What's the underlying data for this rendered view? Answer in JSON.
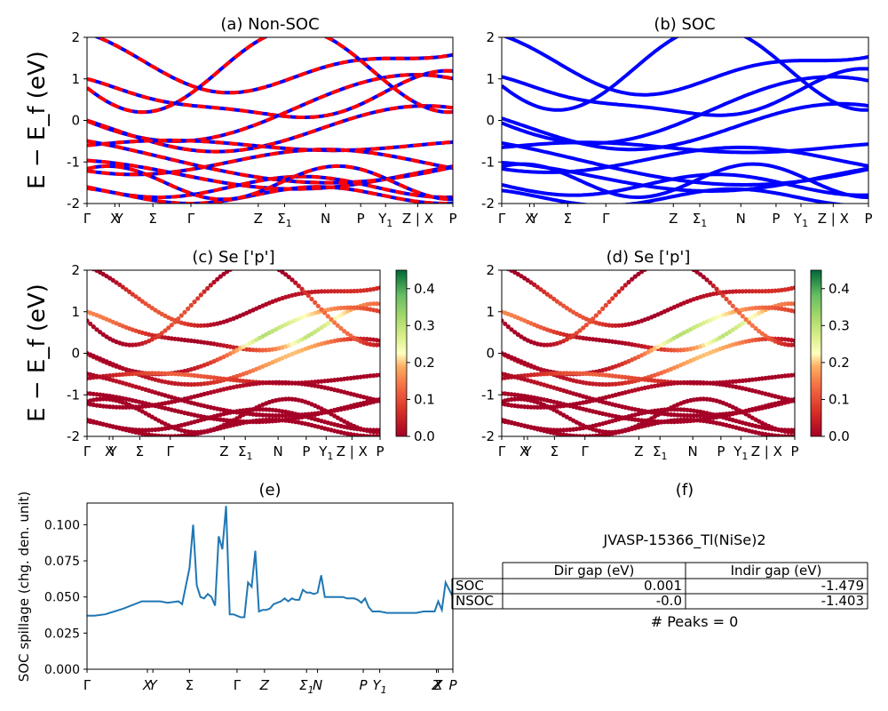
{
  "figure_id": "JVASP-15366_Tl(NiSe)2",
  "chart_data": [
    {
      "id": "a",
      "type": "line",
      "title": "(a) Non-SOC",
      "ylabel": "E − E_f (eV)",
      "ylim": [
        -2,
        2
      ],
      "yticks": [
        -2,
        -1,
        0,
        1,
        2
      ],
      "kpath": [
        "Γ",
        "X",
        "Y",
        "Σ",
        "Γ",
        "Z",
        "Σ1",
        "N",
        "P",
        "Y1",
        "Z | X",
        "P"
      ],
      "colors": {
        "up": "#0000ff",
        "down": "#ff0000"
      },
      "legend": "none"
    },
    {
      "id": "b",
      "type": "line",
      "title": "(b) SOC",
      "ylim": [
        -2,
        2
      ],
      "yticks": [
        -2,
        -1,
        0,
        1,
        2
      ],
      "kpath": [
        "Γ",
        "X",
        "Y",
        "Σ",
        "Γ",
        "Z",
        "Σ1",
        "N",
        "P",
        "Y1",
        "Z | X",
        "P"
      ],
      "colors": {
        "bands": "#0000ff"
      }
    },
    {
      "id": "c",
      "type": "scatter",
      "title": "(c)  Se ['p']",
      "ylabel": "E − E_f (eV)",
      "ylim": [
        -2,
        2
      ],
      "yticks": [
        -2,
        -1,
        0,
        1,
        2
      ],
      "kpath": [
        "Γ",
        "X",
        "Y",
        "Σ",
        "Γ",
        "Z",
        "Σ1",
        "N",
        "P",
        "Y1",
        "Z | X",
        "P"
      ],
      "colorbar": {
        "min": 0.0,
        "max": 0.45,
        "ticks": [
          0.0,
          0.1,
          0.2,
          0.3,
          0.4
        ],
        "colormap": "RdYlGn"
      }
    },
    {
      "id": "d",
      "type": "scatter",
      "title": "(d) Se ['p']",
      "ylim": [
        -2,
        2
      ],
      "yticks": [
        -2,
        -1,
        0,
        1,
        2
      ],
      "kpath": [
        "Γ",
        "X",
        "Y",
        "Σ",
        "Γ",
        "Z",
        "Σ1",
        "N",
        "P",
        "Y1",
        "Z | X",
        "P"
      ],
      "colorbar": {
        "min": 0.0,
        "max": 0.45,
        "ticks": [
          0.0,
          0.1,
          0.2,
          0.3,
          0.4
        ],
        "colormap": "RdYlGn"
      }
    },
    {
      "id": "e",
      "type": "line",
      "title": "(e)",
      "ylabel": "SOC spillage (chg. den. unit)",
      "ylim": [
        0.0,
        0.115
      ],
      "yticks": [
        0.0,
        0.025,
        0.05,
        0.075,
        0.1
      ],
      "xticks": [
        "Γ",
        "X",
        "Y",
        "Σ",
        "Γ",
        "Z",
        "Σ1",
        "N",
        "P",
        "Y1",
        "Z",
        "X",
        "P"
      ],
      "series": [
        {
          "color": "#1f77b4",
          "x": [
            0,
            0.02,
            0.05,
            0.1,
            0.15,
            0.2,
            0.22,
            0.25,
            0.26,
            0.28,
            0.29,
            0.3,
            0.31,
            0.32,
            0.33,
            0.34,
            0.35,
            0.36,
            0.37,
            0.38,
            0.39,
            0.4,
            0.41,
            0.42,
            0.43,
            0.44,
            0.45,
            0.46,
            0.47,
            0.48,
            0.49,
            0.5,
            0.51,
            0.52,
            0.53,
            0.54,
            0.55,
            0.56,
            0.57,
            0.58,
            0.59,
            0.6,
            0.61,
            0.62,
            0.63,
            0.64,
            0.65,
            0.66,
            0.67,
            0.68,
            0.69,
            0.7,
            0.71,
            0.72,
            0.73,
            0.74,
            0.75,
            0.76,
            0.77,
            0.78,
            0.8,
            0.82,
            0.84,
            0.86,
            0.88,
            0.9,
            0.92,
            0.94,
            0.95,
            0.96,
            0.97,
            0.98,
            0.99,
            1.0
          ],
          "y": [
            0.037,
            0.037,
            0.038,
            0.042,
            0.047,
            0.047,
            0.046,
            0.047,
            0.045,
            0.07,
            0.1,
            0.058,
            0.05,
            0.049,
            0.052,
            0.05,
            0.044,
            0.092,
            0.083,
            0.113,
            0.038,
            0.038,
            0.037,
            0.036,
            0.036,
            0.06,
            0.057,
            0.082,
            0.04,
            0.041,
            0.041,
            0.042,
            0.045,
            0.046,
            0.047,
            0.049,
            0.047,
            0.049,
            0.048,
            0.048,
            0.055,
            0.053,
            0.053,
            0.052,
            0.053,
            0.065,
            0.05,
            0.05,
            0.05,
            0.05,
            0.05,
            0.05,
            0.049,
            0.049,
            0.049,
            0.048,
            0.046,
            0.049,
            0.043,
            0.04,
            0.04,
            0.039,
            0.039,
            0.039,
            0.039,
            0.039,
            0.04,
            0.04,
            0.04,
            0.047,
            0.041,
            0.06,
            0.055,
            0.05
          ]
        }
      ]
    }
  ],
  "panel_f": {
    "title": "(f)",
    "material": "JVASP-15366_Tl(NiSe)2",
    "columns": [
      "",
      "Dir gap (eV)",
      "Indir gap (eV)"
    ],
    "rows": [
      {
        "label": "SOC",
        "dir": "0.001",
        "indir": "-1.479"
      },
      {
        "label": "NSOC",
        "dir": "-0.0",
        "indir": "-1.403"
      }
    ],
    "peaks": "# Peaks = 0"
  }
}
